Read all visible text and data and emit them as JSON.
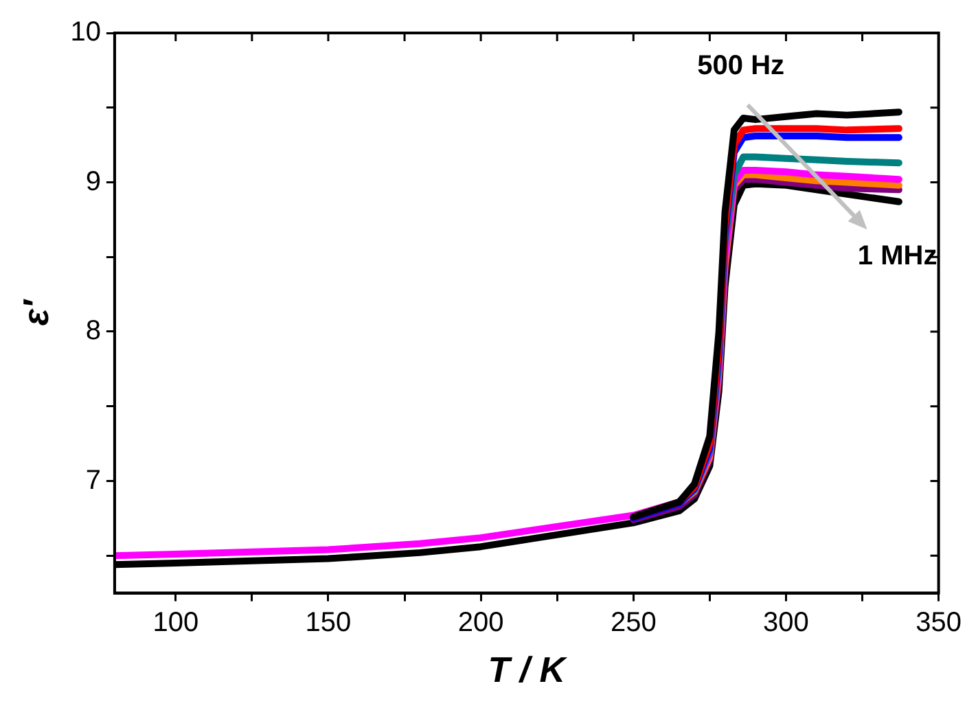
{
  "chart_data": {
    "type": "line",
    "xlabel": "T / K",
    "ylabel": "ε′",
    "x": [
      80,
      100,
      150,
      180,
      200,
      250,
      265,
      270,
      275,
      278,
      280,
      283,
      286,
      290,
      300,
      310,
      320,
      337
    ],
    "series": [
      {
        "color": "#000000",
        "values": [
          null,
          null,
          null,
          null,
          null,
          6.76,
          6.86,
          6.98,
          7.3,
          8.0,
          8.8,
          9.35,
          9.43,
          9.42,
          9.44,
          9.46,
          9.45,
          9.47
        ]
      },
      {
        "color": "#ff0000",
        "values": [
          null,
          null,
          null,
          null,
          null,
          6.76,
          6.86,
          6.96,
          7.25,
          7.9,
          8.7,
          9.25,
          9.35,
          9.36,
          9.36,
          9.36,
          9.35,
          9.36
        ]
      },
      {
        "color": "#0000ff",
        "values": [
          null,
          null,
          null,
          null,
          null,
          6.75,
          6.85,
          6.95,
          7.22,
          7.85,
          8.65,
          9.2,
          9.3,
          9.31,
          9.31,
          9.31,
          9.3,
          9.3
        ]
      },
      {
        "color": "#008080",
        "values": [
          null,
          null,
          null,
          null,
          null,
          6.75,
          6.85,
          6.94,
          7.2,
          7.8,
          8.6,
          9.05,
          9.17,
          9.17,
          9.16,
          9.15,
          9.14,
          9.13
        ]
      },
      {
        "color": "#ff00ff",
        "values": [
          6.5,
          6.51,
          6.54,
          6.58,
          6.62,
          6.77,
          6.86,
          6.94,
          7.18,
          7.75,
          8.5,
          9.0,
          9.08,
          9.08,
          9.07,
          9.05,
          9.04,
          9.02
        ]
      },
      {
        "color": "#ff8000",
        "values": [
          null,
          null,
          null,
          null,
          null,
          null,
          6.85,
          6.93,
          7.16,
          7.72,
          8.45,
          8.98,
          9.05,
          9.05,
          9.03,
          9.01,
          9.0,
          8.98
        ]
      },
      {
        "color": "#800080",
        "values": [
          null,
          null,
          null,
          null,
          null,
          6.74,
          6.83,
          6.91,
          7.14,
          7.68,
          8.4,
          8.95,
          9.02,
          9.02,
          9.0,
          8.98,
          8.96,
          8.95
        ]
      },
      {
        "color": "#000000",
        "values": [
          6.44,
          6.45,
          6.48,
          6.52,
          6.56,
          6.72,
          6.8,
          6.88,
          7.1,
          7.6,
          8.3,
          8.85,
          8.98,
          8.99,
          8.98,
          8.95,
          8.92,
          8.87
        ]
      }
    ],
    "annotations": [
      "500 Hz",
      "1 MHz"
    ],
    "xlim": [
      80,
      350
    ],
    "xticks": [
      100,
      {
        "value": 125,
        "label": null
      },
      150,
      {
        "value": 175,
        "label": null
      },
      200,
      {
        "value": 225,
        "label": null
      },
      250,
      {
        "value": 275,
        "label": null
      },
      300,
      {
        "value": 325,
        "label": null
      },
      350
    ],
    "ylim": [
      6.25,
      10
    ],
    "yticks": [
      {
        "value": 6.5,
        "label": null
      },
      7,
      {
        "value": 7.5,
        "label": null
      },
      8,
      {
        "value": 8.5,
        "label": null
      },
      9,
      {
        "value": 9.5,
        "label": null
      },
      10
    ],
    "grid": false,
    "legend": false,
    "marker": "none",
    "line_style": "solid"
  }
}
